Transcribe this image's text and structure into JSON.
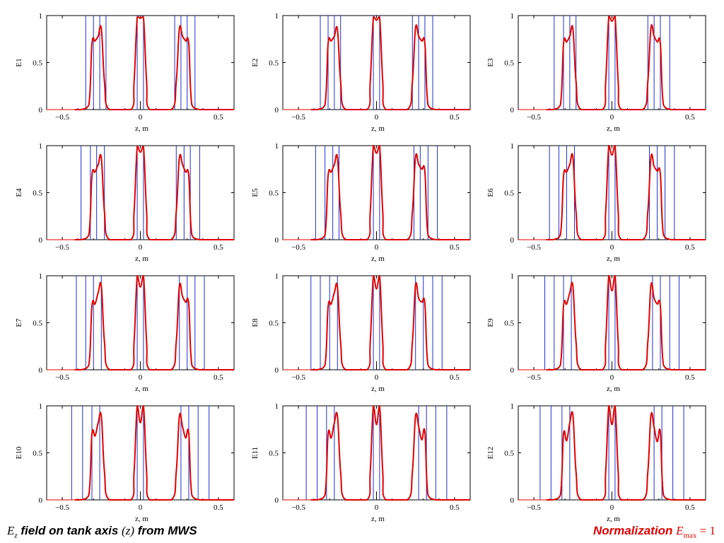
{
  "colors": {
    "curve": "#e00000",
    "vlines": "#1f2fd0",
    "axis": "#000000",
    "note": "#e00000"
  },
  "chart_data": [
    {
      "type": "line",
      "ylabel": "E1",
      "xlabel": "z, m",
      "xlim": [
        -0.6,
        0.6
      ],
      "ylim": [
        0,
        1
      ],
      "xticks": [
        "-0.5",
        "0",
        "0.5"
      ],
      "yticks": [
        "0",
        "0.5",
        "1"
      ],
      "series": [
        {
          "x": [
            -0.38,
            -0.33,
            -0.31,
            -0.29,
            -0.27,
            -0.25,
            -0.23,
            -0.2,
            -0.06,
            -0.04,
            -0.02,
            0,
            0.02,
            0.04,
            0.06,
            0.2,
            0.23,
            0.25,
            0.27,
            0.29,
            0.31,
            0.33,
            0.38
          ],
          "y": [
            0,
            0.05,
            0.7,
            0.73,
            0.78,
            0.86,
            0.3,
            0,
            0,
            0.3,
            0.98,
            0.97,
            0.98,
            0.3,
            0,
            0,
            0.3,
            0.86,
            0.78,
            0.73,
            0.7,
            0.05,
            0
          ]
        }
      ],
      "vlines": [
        -0.35,
        -0.3,
        -0.26,
        -0.22,
        -0.02,
        0.02,
        0.22,
        0.26,
        0.3,
        0.35
      ]
    },
    {
      "type": "line",
      "ylabel": "E2",
      "xlabel": "z, m",
      "xlim": [
        -0.6,
        0.6
      ],
      "ylim": [
        0,
        1
      ],
      "xticks": [
        "-0.5",
        "0",
        "0.5"
      ],
      "yticks": [
        "0",
        "0.5",
        "1"
      ],
      "series": [
        {
          "x": [
            -0.38,
            -0.33,
            -0.31,
            -0.29,
            -0.27,
            -0.25,
            -0.23,
            -0.2,
            -0.06,
            -0.04,
            -0.02,
            0,
            0.02,
            0.04,
            0.06,
            0.2,
            0.23,
            0.25,
            0.27,
            0.29,
            0.31,
            0.33,
            0.38
          ],
          "y": [
            0,
            0.05,
            0.7,
            0.73,
            0.78,
            0.85,
            0.3,
            0,
            0,
            0.3,
            0.98,
            0.95,
            0.98,
            0.3,
            0,
            0,
            0.3,
            0.87,
            0.78,
            0.73,
            0.7,
            0.05,
            0
          ]
        }
      ],
      "vlines": [
        -0.36,
        -0.31,
        -0.27,
        -0.23,
        -0.02,
        0.02,
        0.23,
        0.27,
        0.31,
        0.36
      ]
    },
    {
      "type": "line",
      "ylabel": "E3",
      "xlabel": "z, m",
      "xlim": [
        -0.6,
        0.6
      ],
      "ylim": [
        0,
        1
      ],
      "xticks": [
        "-0.5",
        "0",
        "0.5"
      ],
      "yticks": [
        "0",
        "0.5",
        "1"
      ],
      "series": [
        {
          "x": [
            -0.38,
            -0.33,
            -0.31,
            -0.29,
            -0.27,
            -0.25,
            -0.23,
            -0.2,
            -0.06,
            -0.04,
            -0.02,
            0,
            0.02,
            0.04,
            0.06,
            0.2,
            0.23,
            0.25,
            0.27,
            0.29,
            0.31,
            0.33,
            0.38
          ],
          "y": [
            0,
            0.05,
            0.7,
            0.72,
            0.78,
            0.86,
            0.3,
            0,
            0,
            0.3,
            0.99,
            0.94,
            0.99,
            0.3,
            0,
            0,
            0.3,
            0.87,
            0.78,
            0.72,
            0.7,
            0.05,
            0
          ]
        }
      ],
      "vlines": [
        -0.37,
        -0.31,
        -0.27,
        -0.23,
        -0.02,
        0.02,
        0.23,
        0.27,
        0.31,
        0.37
      ]
    },
    {
      "type": "line",
      "ylabel": "E4",
      "xlabel": "z, m",
      "xlim": [
        -0.6,
        0.6
      ],
      "ylim": [
        0,
        1
      ],
      "xticks": [
        "-0.5",
        "0",
        "0.5"
      ],
      "yticks": [
        "0",
        "0.5",
        "1"
      ],
      "series": [
        {
          "x": [
            -0.38,
            -0.33,
            -0.31,
            -0.29,
            -0.27,
            -0.25,
            -0.23,
            -0.2,
            -0.06,
            -0.04,
            -0.02,
            0,
            0.02,
            0.04,
            0.06,
            0.2,
            0.23,
            0.25,
            0.27,
            0.29,
            0.31,
            0.33,
            0.38
          ],
          "y": [
            0,
            0.05,
            0.68,
            0.72,
            0.8,
            0.87,
            0.3,
            0,
            0,
            0.3,
            0.99,
            0.93,
            0.99,
            0.3,
            0,
            0,
            0.3,
            0.87,
            0.8,
            0.72,
            0.68,
            0.05,
            0
          ]
        }
      ],
      "vlines": [
        -0.38,
        -0.32,
        -0.28,
        -0.23,
        -0.02,
        0.02,
        0.23,
        0.28,
        0.32,
        0.38
      ]
    },
    {
      "type": "line",
      "ylabel": "E5",
      "xlabel": "z, m",
      "xlim": [
        -0.6,
        0.6
      ],
      "ylim": [
        0,
        1
      ],
      "xticks": [
        "-0.5",
        "0",
        "0.5"
      ],
      "yticks": [
        "0",
        "0.5",
        "1"
      ],
      "series": [
        {
          "x": [
            -0.38,
            -0.33,
            -0.31,
            -0.29,
            -0.27,
            -0.25,
            -0.23,
            -0.2,
            -0.06,
            -0.04,
            -0.02,
            0,
            0.02,
            0.04,
            0.06,
            0.2,
            0.23,
            0.25,
            0.27,
            0.29,
            0.31,
            0.33,
            0.38
          ],
          "y": [
            0,
            0.05,
            0.68,
            0.72,
            0.8,
            0.87,
            0.3,
            0,
            0,
            0.3,
            1,
            0.92,
            1,
            0.3,
            0,
            0,
            0.3,
            0.88,
            0.8,
            0.75,
            0.72,
            0.05,
            0
          ]
        }
      ],
      "vlines": [
        -0.39,
        -0.33,
        -0.28,
        -0.24,
        -0.02,
        0.02,
        0.24,
        0.28,
        0.33,
        0.39
      ]
    },
    {
      "type": "line",
      "ylabel": "E6",
      "xlabel": "z, m",
      "xlim": [
        -0.6,
        0.6
      ],
      "ylim": [
        0,
        1
      ],
      "xticks": [
        "-0.5",
        "0",
        "0.5"
      ],
      "yticks": [
        "0",
        "0.5",
        "1"
      ],
      "series": [
        {
          "x": [
            -0.38,
            -0.33,
            -0.31,
            -0.29,
            -0.27,
            -0.25,
            -0.23,
            -0.2,
            -0.06,
            -0.04,
            -0.02,
            0,
            0.02,
            0.04,
            0.06,
            0.2,
            0.23,
            0.25,
            0.27,
            0.29,
            0.31,
            0.33,
            0.38
          ],
          "y": [
            0,
            0.05,
            0.68,
            0.72,
            0.8,
            0.88,
            0.3,
            0,
            0,
            0.3,
            1,
            0.9,
            1,
            0.3,
            0,
            0,
            0.3,
            0.88,
            0.78,
            0.73,
            0.7,
            0.05,
            0
          ]
        }
      ],
      "vlines": [
        -0.4,
        -0.34,
        -0.29,
        -0.24,
        -0.02,
        0.02,
        0.24,
        0.29,
        0.34,
        0.4
      ]
    },
    {
      "type": "line",
      "ylabel": "E7",
      "xlabel": "z, m",
      "xlim": [
        -0.6,
        0.6
      ],
      "ylim": [
        0,
        1
      ],
      "xticks": [
        "-0.5",
        "0",
        "0.5"
      ],
      "yticks": [
        "0",
        "0.5",
        "1"
      ],
      "series": [
        {
          "x": [
            -0.38,
            -0.33,
            -0.31,
            -0.29,
            -0.27,
            -0.25,
            -0.23,
            -0.2,
            -0.06,
            -0.04,
            -0.02,
            0,
            0.02,
            0.04,
            0.06,
            0.2,
            0.23,
            0.25,
            0.27,
            0.29,
            0.31,
            0.33,
            0.38
          ],
          "y": [
            0,
            0.05,
            0.68,
            0.7,
            0.82,
            0.89,
            0.3,
            0,
            0,
            0.3,
            1,
            0.88,
            1,
            0.3,
            0,
            0,
            0.3,
            0.89,
            0.78,
            0.72,
            0.7,
            0.05,
            0
          ]
        }
      ],
      "vlines": [
        -0.41,
        -0.35,
        -0.3,
        -0.25,
        -0.02,
        0.02,
        0.25,
        0.3,
        0.35,
        0.41
      ]
    },
    {
      "type": "line",
      "ylabel": "E8",
      "xlabel": "z, m",
      "xlim": [
        -0.6,
        0.6
      ],
      "ylim": [
        0,
        1
      ],
      "xticks": [
        "-0.5",
        "0",
        "0.5"
      ],
      "yticks": [
        "0",
        "0.5",
        "1"
      ],
      "series": [
        {
          "x": [
            -0.38,
            -0.33,
            -0.31,
            -0.29,
            -0.27,
            -0.25,
            -0.23,
            -0.2,
            -0.06,
            -0.04,
            -0.02,
            0,
            0.02,
            0.04,
            0.06,
            0.2,
            0.23,
            0.25,
            0.27,
            0.29,
            0.31,
            0.33,
            0.38
          ],
          "y": [
            0,
            0.05,
            0.67,
            0.7,
            0.82,
            0.88,
            0.3,
            0,
            0,
            0.3,
            1,
            0.86,
            1,
            0.3,
            0,
            0,
            0.3,
            0.9,
            0.76,
            0.72,
            0.7,
            0.05,
            0
          ]
        }
      ],
      "vlines": [
        -0.42,
        -0.36,
        -0.3,
        -0.25,
        -0.02,
        0.02,
        0.25,
        0.3,
        0.36,
        0.42
      ]
    },
    {
      "type": "line",
      "ylabel": "E9",
      "xlabel": "z, m",
      "xlim": [
        -0.6,
        0.6
      ],
      "ylim": [
        0,
        1
      ],
      "xticks": [
        "-0.5",
        "0",
        "0.5"
      ],
      "yticks": [
        "0",
        "0.5",
        "1"
      ],
      "series": [
        {
          "x": [
            -0.38,
            -0.33,
            -0.31,
            -0.29,
            -0.27,
            -0.25,
            -0.23,
            -0.2,
            -0.06,
            -0.04,
            -0.02,
            0,
            0.02,
            0.04,
            0.06,
            0.2,
            0.23,
            0.25,
            0.27,
            0.29,
            0.31,
            0.33,
            0.38
          ],
          "y": [
            0,
            0.05,
            0.68,
            0.7,
            0.82,
            0.89,
            0.3,
            0,
            0,
            0.3,
            1,
            0.84,
            1,
            0.3,
            0,
            0,
            0.3,
            0.9,
            0.76,
            0.7,
            0.68,
            0.05,
            0
          ]
        }
      ],
      "vlines": [
        -0.43,
        -0.37,
        -0.31,
        -0.26,
        -0.02,
        0.02,
        0.26,
        0.31,
        0.37,
        0.43
      ]
    },
    {
      "type": "line",
      "ylabel": "E10",
      "xlabel": "z, m",
      "xlim": [
        -0.6,
        0.6
      ],
      "ylim": [
        0,
        1
      ],
      "xticks": [
        "-0.5",
        "0",
        "0.5"
      ],
      "yticks": [
        "0",
        "0.5",
        "1"
      ],
      "series": [
        {
          "x": [
            -0.38,
            -0.33,
            -0.31,
            -0.29,
            -0.27,
            -0.25,
            -0.23,
            -0.2,
            -0.06,
            -0.04,
            -0.02,
            0,
            0.02,
            0.04,
            0.06,
            0.2,
            0.23,
            0.25,
            0.27,
            0.29,
            0.31,
            0.33,
            0.38
          ],
          "y": [
            0,
            0.05,
            0.7,
            0.68,
            0.82,
            0.89,
            0.3,
            0,
            0,
            0.3,
            1,
            0.82,
            1,
            0.3,
            0,
            0,
            0.3,
            0.89,
            0.78,
            0.66,
            0.71,
            0.05,
            0
          ]
        }
      ],
      "vlines": [
        -0.44,
        -0.37,
        -0.31,
        -0.26,
        -0.02,
        0.02,
        0.26,
        0.31,
        0.37,
        0.44
      ]
    },
    {
      "type": "line",
      "ylabel": "E11",
      "xlabel": "z, m",
      "xlim": [
        -0.6,
        0.6
      ],
      "ylim": [
        0,
        1
      ],
      "xticks": [
        "-0.5",
        "0",
        "0.5"
      ],
      "yticks": [
        "0",
        "0.5",
        "1"
      ],
      "series": [
        {
          "x": [
            -0.38,
            -0.33,
            -0.31,
            -0.29,
            -0.27,
            -0.25,
            -0.23,
            -0.2,
            -0.06,
            -0.04,
            -0.02,
            0,
            0.02,
            0.04,
            0.06,
            0.2,
            0.23,
            0.25,
            0.27,
            0.29,
            0.31,
            0.33,
            0.38
          ],
          "y": [
            0,
            0.05,
            0.7,
            0.66,
            0.82,
            0.89,
            0.3,
            0,
            0,
            0.3,
            1,
            0.8,
            1,
            0.3,
            0,
            0,
            0.3,
            0.89,
            0.78,
            0.64,
            0.72,
            0.05,
            0
          ]
        }
      ],
      "vlines": [
        -0.45,
        -0.38,
        -0.32,
        -0.27,
        -0.02,
        0.02,
        0.27,
        0.32,
        0.38,
        0.45
      ]
    },
    {
      "type": "line",
      "ylabel": "E12",
      "xlabel": "z, m",
      "xlim": [
        -0.6,
        0.6
      ],
      "ylim": [
        0,
        1
      ],
      "xticks": [
        "-0.5",
        "0",
        "0.5"
      ],
      "yticks": [
        "0",
        "0.5",
        "1"
      ],
      "series": [
        {
          "x": [
            -0.38,
            -0.33,
            -0.31,
            -0.29,
            -0.27,
            -0.25,
            -0.23,
            -0.2,
            -0.06,
            -0.04,
            -0.02,
            0,
            0.02,
            0.04,
            0.06,
            0.2,
            0.23,
            0.25,
            0.27,
            0.29,
            0.31,
            0.33,
            0.38
          ],
          "y": [
            0,
            0.05,
            0.7,
            0.63,
            0.82,
            0.9,
            0.3,
            0,
            0,
            0.3,
            1,
            0.8,
            1,
            0.3,
            0,
            0,
            0.3,
            0.9,
            0.77,
            0.62,
            0.72,
            0.05,
            0
          ]
        }
      ],
      "vlines": [
        -0.46,
        -0.39,
        -0.32,
        -0.27,
        -0.02,
        0.02,
        0.27,
        0.32,
        0.39,
        0.46
      ]
    }
  ],
  "footer": {
    "left_symbol": "E",
    "left_sub": "z",
    "left_text": " field on tank axis ",
    "left_var": "(z)",
    "left_tail": " from MWS",
    "right_text": "Normalization ",
    "right_symbol": "E",
    "right_sub": "max",
    "right_tail": " = 1"
  }
}
